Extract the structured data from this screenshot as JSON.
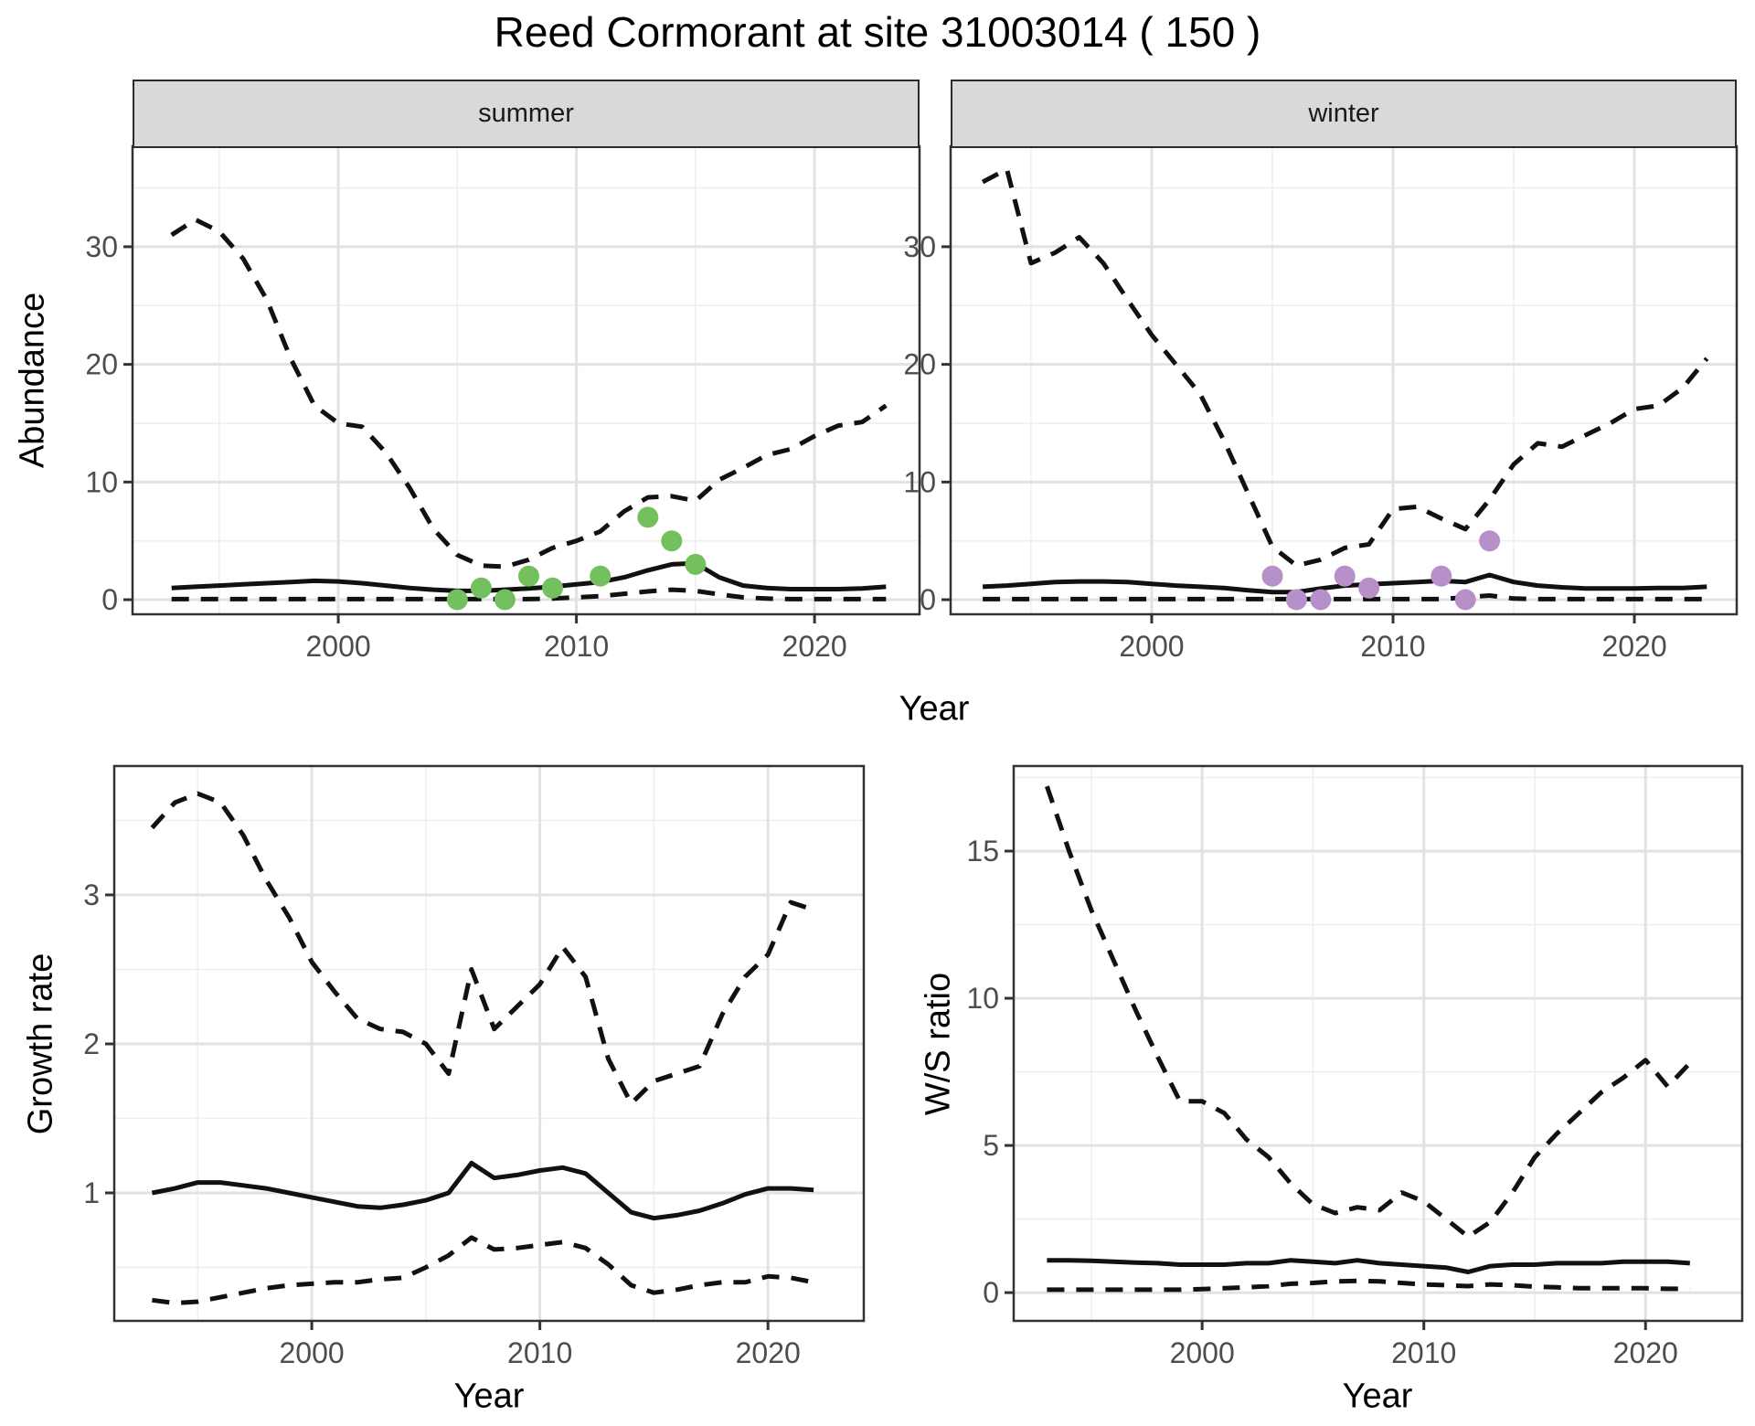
{
  "title": "Reed Cormorant at site 31003014 ( 150 )",
  "facets": [
    {
      "label": "summer"
    },
    {
      "label": "winter"
    }
  ],
  "colors": {
    "observed_summer": "#74c05e",
    "observed_winter": "#b78fc9",
    "line": "#111111",
    "grid_major": "#e2e2e2",
    "grid_minor": "#efefef",
    "strip_bg": "#d9d9d9",
    "border": "#333333",
    "tick_text": "#4d4d4d"
  },
  "chart_data": [
    {
      "type": "line",
      "facet": "summer",
      "xlabel": "Year",
      "ylabel": "Abundance",
      "x": [
        1993,
        1994,
        1995,
        1996,
        1997,
        1998,
        1999,
        2000,
        2001,
        2002,
        2003,
        2004,
        2005,
        2006,
        2007,
        2008,
        2009,
        2010,
        2011,
        2012,
        2013,
        2014,
        2015,
        2016,
        2017,
        2018,
        2019,
        2020,
        2021,
        2022,
        2023
      ],
      "series": [
        {
          "name": "upper-95ci",
          "style": "dashed",
          "values": [
            31.0,
            32.3,
            31.3,
            29.0,
            25.5,
            20.5,
            16.5,
            15.0,
            14.7,
            12.5,
            9.5,
            6.0,
            3.8,
            2.9,
            2.8,
            3.4,
            4.4,
            5.0,
            5.8,
            7.5,
            8.7,
            8.8,
            8.4,
            10.2,
            11.2,
            12.3,
            12.8,
            13.9,
            14.8,
            15.1,
            16.5
          ]
        },
        {
          "name": "modelled-mean",
          "style": "solid",
          "values": [
            1.0,
            1.1,
            1.2,
            1.3,
            1.4,
            1.5,
            1.6,
            1.55,
            1.4,
            1.2,
            1.0,
            0.85,
            0.75,
            0.75,
            0.85,
            0.95,
            1.1,
            1.3,
            1.5,
            1.9,
            2.5,
            3.0,
            3.1,
            1.9,
            1.2,
            1.0,
            0.9,
            0.9,
            0.9,
            0.95,
            1.1
          ]
        },
        {
          "name": "lower-95ci",
          "style": "dashed",
          "values": [
            0.05,
            0.05,
            0.05,
            0.05,
            0.05,
            0.05,
            0.05,
            0.05,
            0.05,
            0.05,
            0.05,
            0.05,
            0.05,
            0.05,
            0.05,
            0.05,
            0.1,
            0.2,
            0.3,
            0.5,
            0.7,
            0.85,
            0.75,
            0.45,
            0.2,
            0.1,
            0.05,
            0.05,
            0.05,
            0.05,
            0.05
          ]
        }
      ],
      "points": {
        "name": "observed-counts",
        "color": "#74c05e",
        "data": [
          [
            2005,
            0
          ],
          [
            2006,
            1
          ],
          [
            2007,
            0
          ],
          [
            2008,
            2
          ],
          [
            2009,
            1
          ],
          [
            2011,
            2
          ],
          [
            2013,
            7
          ],
          [
            2014,
            5
          ],
          [
            2015,
            3
          ]
        ]
      },
      "xlim": [
        1991.36,
        2024.41
      ],
      "ylim": [
        -1.24,
        38.54
      ],
      "xticks": {
        "values": [
          2000,
          2010,
          2020
        ],
        "labels": [
          "2000",
          "2010",
          "2020"
        ]
      },
      "yticks": {
        "values": [
          0,
          10,
          20,
          30
        ],
        "labels": [
          "0",
          "10",
          "20",
          "30"
        ]
      },
      "xminor": [
        1995,
        2005,
        2015
      ],
      "yminor": [
        5,
        15,
        25,
        35
      ],
      "grid": true
    },
    {
      "type": "line",
      "facet": "winter",
      "xlabel": "Year",
      "ylabel": "Abundance",
      "x": [
        1993,
        1994,
        1995,
        1996,
        1997,
        1998,
        1999,
        2000,
        2001,
        2002,
        2003,
        2004,
        2005,
        2006,
        2007,
        2008,
        2009,
        2010,
        2011,
        2012,
        2013,
        2014,
        2015,
        2016,
        2017,
        2018,
        2019,
        2020,
        2021,
        2022,
        2023
      ],
      "series": [
        {
          "name": "upper-95ci",
          "style": "dashed",
          "values": [
            35.5,
            36.6,
            28.6,
            29.5,
            30.8,
            28.6,
            25.5,
            22.5,
            20.0,
            17.5,
            13.5,
            9.0,
            4.5,
            2.9,
            3.4,
            4.4,
            4.7,
            7.7,
            7.9,
            6.9,
            6.0,
            8.5,
            11.5,
            13.3,
            13.0,
            14.0,
            15.0,
            16.2,
            16.5,
            18.0,
            20.5
          ]
        },
        {
          "name": "modelled-mean",
          "style": "solid",
          "values": [
            1.1,
            1.2,
            1.35,
            1.5,
            1.55,
            1.55,
            1.5,
            1.35,
            1.2,
            1.1,
            1.0,
            0.8,
            0.65,
            0.65,
            0.95,
            1.2,
            1.3,
            1.4,
            1.5,
            1.6,
            1.5,
            2.1,
            1.5,
            1.2,
            1.05,
            0.95,
            0.95,
            0.95,
            1.0,
            1.0,
            1.1
          ]
        },
        {
          "name": "lower-95ci",
          "style": "dashed",
          "values": [
            0.05,
            0.05,
            0.05,
            0.05,
            0.05,
            0.05,
            0.05,
            0.05,
            0.05,
            0.05,
            0.05,
            0.05,
            0.05,
            0.05,
            0.05,
            0.05,
            0.05,
            0.05,
            0.05,
            0.05,
            0.2,
            0.35,
            0.1,
            0.05,
            0.05,
            0.05,
            0.05,
            0.05,
            0.05,
            0.05,
            0.05
          ]
        }
      ],
      "points": {
        "name": "observed-counts",
        "color": "#b78fc9",
        "data": [
          [
            2005,
            2
          ],
          [
            2006,
            0
          ],
          [
            2007,
            0
          ],
          [
            2008,
            2
          ],
          [
            2009,
            1
          ],
          [
            2012,
            2
          ],
          [
            2013,
            0
          ],
          [
            2014,
            5
          ]
        ]
      },
      "xlim": [
        1991.67,
        2024.24
      ],
      "ylim": [
        -1.24,
        38.54
      ],
      "xticks": {
        "values": [
          2000,
          2010,
          2020
        ],
        "labels": [
          "2000",
          "2010",
          "2020"
        ]
      },
      "yticks": {
        "values": [
          0,
          10,
          20,
          30
        ],
        "labels": [
          "0",
          "10",
          "20",
          "30"
        ]
      },
      "xminor": [
        1995,
        2005,
        2015
      ],
      "yminor": [
        5,
        15,
        25,
        35
      ],
      "grid": true
    },
    {
      "type": "line",
      "facet": "",
      "xlabel": "Year",
      "ylabel": "Growth rate",
      "x": [
        1993,
        1994,
        1995,
        1996,
        1997,
        1998,
        1999,
        2000,
        2001,
        2002,
        2003,
        2004,
        2005,
        2006,
        2007,
        2008,
        2009,
        2010,
        2011,
        2012,
        2013,
        2014,
        2015,
        2016,
        2017,
        2018,
        2019,
        2020,
        2021,
        2022
      ],
      "series": [
        {
          "name": "upper-95ci",
          "style": "dashed",
          "values": [
            3.45,
            3.62,
            3.68,
            3.62,
            3.4,
            3.1,
            2.85,
            2.55,
            2.35,
            2.17,
            2.1,
            2.08,
            2.0,
            1.8,
            2.5,
            2.1,
            2.25,
            2.4,
            2.65,
            2.45,
            1.9,
            1.6,
            1.75,
            1.8,
            1.85,
            2.2,
            2.45,
            2.6,
            2.95,
            2.9
          ]
        },
        {
          "name": "modelled-mean",
          "style": "solid",
          "values": [
            1.0,
            1.03,
            1.07,
            1.07,
            1.05,
            1.03,
            1.0,
            0.97,
            0.94,
            0.91,
            0.9,
            0.92,
            0.95,
            1.0,
            1.2,
            1.1,
            1.12,
            1.15,
            1.17,
            1.13,
            1.0,
            0.87,
            0.83,
            0.85,
            0.88,
            0.93,
            0.99,
            1.03,
            1.03,
            1.02
          ]
        },
        {
          "name": "lower-95ci",
          "style": "dashed",
          "values": [
            0.28,
            0.26,
            0.27,
            0.3,
            0.33,
            0.36,
            0.38,
            0.39,
            0.4,
            0.4,
            0.42,
            0.43,
            0.5,
            0.58,
            0.7,
            0.62,
            0.63,
            0.65,
            0.67,
            0.63,
            0.52,
            0.38,
            0.33,
            0.35,
            0.38,
            0.4,
            0.4,
            0.44,
            0.43,
            0.4
          ]
        }
      ],
      "points": null,
      "xlim": [
        1991.34,
        2024.2
      ],
      "ylim": [
        0.141,
        3.865
      ],
      "xticks": {
        "values": [
          2000,
          2010,
          2020
        ],
        "labels": [
          "2000",
          "2010",
          "2020"
        ]
      },
      "yticks": {
        "values": [
          1,
          2,
          3
        ],
        "labels": [
          "1",
          "2",
          "3"
        ]
      },
      "xminor": [
        1995,
        2005,
        2015
      ],
      "yminor": [
        0.5,
        1.5,
        2.5,
        3.5
      ],
      "grid": true
    },
    {
      "type": "line",
      "facet": "",
      "xlabel": "Year",
      "ylabel": "W/S ratio",
      "x": [
        1993,
        1994,
        1995,
        1996,
        1997,
        1998,
        1999,
        2000,
        2001,
        2002,
        2003,
        2004,
        2005,
        2006,
        2007,
        2008,
        2009,
        2010,
        2011,
        2012,
        2013,
        2014,
        2015,
        2016,
        2017,
        2018,
        2019,
        2020,
        2021,
        2022
      ],
      "series": [
        {
          "name": "upper-95ci",
          "style": "dashed",
          "values": [
            17.2,
            15.0,
            13.0,
            11.3,
            9.6,
            8.0,
            6.5,
            6.5,
            6.1,
            5.2,
            4.6,
            3.7,
            3.0,
            2.7,
            2.9,
            2.8,
            3.4,
            3.1,
            2.5,
            1.9,
            2.4,
            3.4,
            4.6,
            5.4,
            6.1,
            6.8,
            7.3,
            7.9,
            7.0,
            7.8
          ]
        },
        {
          "name": "modelled-mean",
          "style": "solid",
          "values": [
            1.1,
            1.1,
            1.08,
            1.05,
            1.02,
            1.0,
            0.95,
            0.95,
            0.95,
            1.0,
            1.0,
            1.1,
            1.05,
            1.0,
            1.1,
            1.0,
            0.95,
            0.9,
            0.85,
            0.7,
            0.9,
            0.95,
            0.95,
            1.0,
            1.0,
            1.0,
            1.05,
            1.05,
            1.05,
            1.0
          ]
        },
        {
          "name": "lower-95ci",
          "style": "dashed",
          "values": [
            0.1,
            0.1,
            0.1,
            0.1,
            0.1,
            0.1,
            0.1,
            0.12,
            0.15,
            0.18,
            0.22,
            0.3,
            0.33,
            0.38,
            0.4,
            0.38,
            0.33,
            0.28,
            0.25,
            0.22,
            0.28,
            0.25,
            0.2,
            0.18,
            0.15,
            0.15,
            0.15,
            0.15,
            0.13,
            0.13
          ]
        }
      ],
      "points": null,
      "xlim": [
        1991.5,
        2024.36
      ],
      "ylim": [
        -0.96,
        17.89
      ],
      "xticks": {
        "values": [
          2000,
          2010,
          2020
        ],
        "labels": [
          "2000",
          "2010",
          "2020"
        ]
      },
      "yticks": {
        "values": [
          0,
          5,
          10,
          15
        ],
        "labels": [
          "0",
          "5",
          "10",
          "15"
        ]
      },
      "xminor": [
        1995,
        2005,
        2015
      ],
      "yminor": [
        2.5,
        7.5,
        12.5,
        17.5
      ],
      "grid": true
    }
  ]
}
